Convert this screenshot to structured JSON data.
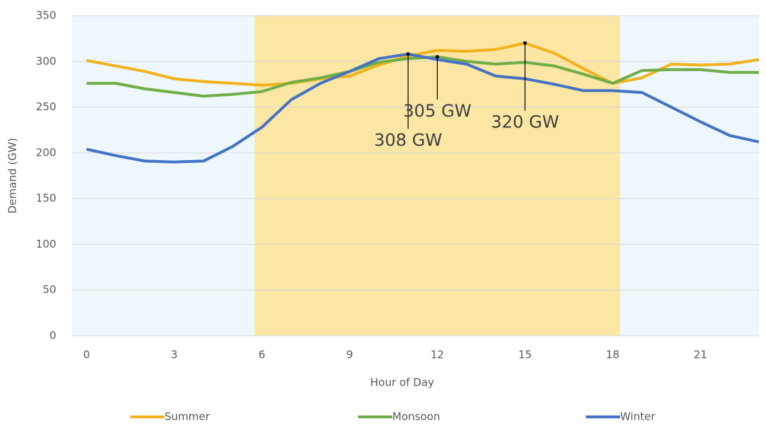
{
  "chart_data": {
    "type": "line",
    "x_label": "Hour of Day",
    "y_label": "Demand (GW)",
    "x": [
      0,
      1,
      2,
      3,
      4,
      5,
      6,
      7,
      8,
      9,
      10,
      11,
      12,
      13,
      14,
      15,
      16,
      17,
      18,
      19,
      20,
      21,
      22,
      23
    ],
    "series": [
      {
        "name": "Summer",
        "color": "#f2b21c",
        "values": [
          301,
          295,
          289,
          281,
          278,
          276,
          274,
          276,
          281,
          284,
          296,
          306,
          312,
          311,
          313,
          320,
          309,
          292,
          276,
          282,
          297,
          296,
          297,
          302
        ]
      },
      {
        "name": "Monsoon",
        "color": "#70ad47",
        "values": [
          276,
          276,
          270,
          266,
          262,
          264,
          267,
          277,
          282,
          289,
          299,
          303,
          305,
          300,
          297,
          299,
          295,
          286,
          276,
          290,
          291,
          291,
          288,
          288
        ]
      },
      {
        "name": "Winter",
        "color": "#4472c4",
        "values": [
          204,
          197,
          191,
          190,
          191,
          207,
          228,
          258,
          276,
          289,
          303,
          308,
          302,
          297,
          284,
          281,
          275,
          268,
          268,
          266,
          250,
          234,
          219,
          212
        ]
      }
    ],
    "xlim": [
      -0.5,
      23
    ],
    "xticks": [
      0,
      3,
      6,
      9,
      12,
      15,
      18,
      21
    ],
    "ylim": [
      0,
      350
    ],
    "yticks": [
      0,
      50,
      100,
      150,
      200,
      250,
      300,
      350
    ],
    "grid": true,
    "legend": "bottom",
    "background_color": "#eef7fb",
    "highlight": {
      "range": [
        5.75,
        18.25
      ],
      "color": "#fbe6a4"
    },
    "annotations": [
      {
        "text": "308 GW",
        "x": 11,
        "y": 308
      },
      {
        "text": "305 GW",
        "x": 12,
        "y": 305
      },
      {
        "text": "320 GW",
        "x": 15,
        "y": 320
      }
    ]
  }
}
